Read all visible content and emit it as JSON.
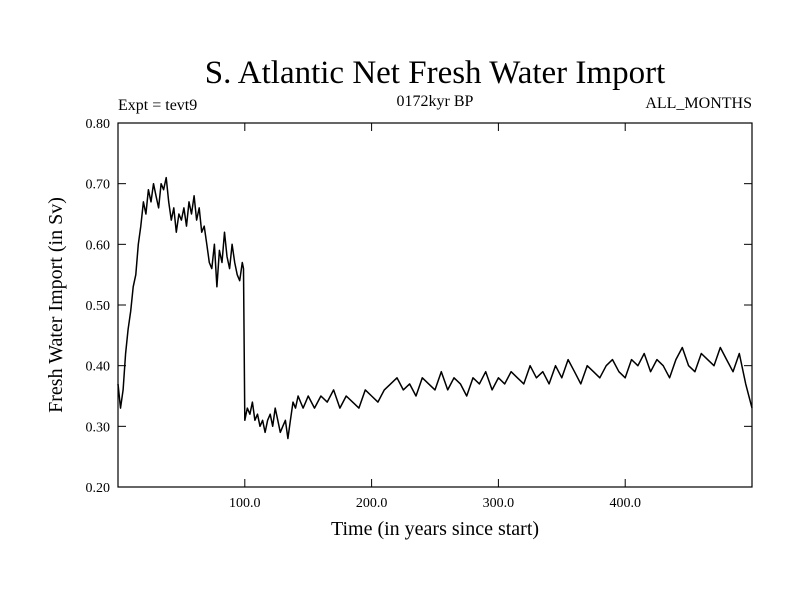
{
  "chart_data": {
    "type": "line",
    "title": "S. Atlantic Net Fresh Water Import",
    "subtitle_left": "Expt = tevt9",
    "subtitle_center": "0172kyr BP",
    "subtitle_right": "ALL_MONTHS",
    "xlabel": "Time (in years since start)",
    "ylabel": "Fresh Water Import (in Sv)",
    "xlim": [
      0,
      500
    ],
    "ylim": [
      0.2,
      0.8
    ],
    "x_ticks": [
      100,
      200,
      300,
      400
    ],
    "x_tick_labels": [
      "100.0",
      "200.0",
      "300.0",
      "400.0"
    ],
    "y_ticks": [
      0.2,
      0.3,
      0.4,
      0.5,
      0.6,
      0.7,
      0.8
    ],
    "y_tick_labels": [
      "0.20",
      "0.30",
      "0.40",
      "0.50",
      "0.60",
      "0.70",
      "0.80"
    ],
    "grid": false,
    "line_color": "#000000",
    "series": [
      {
        "x": [
          0,
          2,
          4,
          6,
          8,
          10,
          12,
          14,
          16,
          18,
          20,
          22,
          24,
          26,
          28,
          30,
          32,
          34,
          36,
          38,
          40,
          42,
          44,
          46,
          48,
          50,
          52,
          54,
          56,
          58,
          60,
          62,
          64,
          66,
          68,
          70,
          72,
          74,
          76,
          78,
          80,
          82,
          84,
          86,
          88,
          90,
          92,
          94,
          96,
          98,
          99,
          100,
          102,
          104,
          106,
          108,
          110,
          112,
          114,
          116,
          118,
          120,
          122,
          124,
          126,
          128,
          130,
          132,
          134,
          136,
          138,
          140,
          142,
          144,
          146,
          148,
          150,
          155,
          160,
          165,
          170,
          175,
          180,
          185,
          190,
          195,
          200,
          205,
          210,
          215,
          220,
          225,
          230,
          235,
          240,
          245,
          250,
          255,
          260,
          265,
          270,
          275,
          280,
          285,
          290,
          295,
          300,
          305,
          310,
          315,
          320,
          325,
          330,
          335,
          340,
          345,
          350,
          355,
          360,
          365,
          370,
          375,
          380,
          385,
          390,
          395,
          400,
          405,
          410,
          415,
          420,
          425,
          430,
          435,
          440,
          445,
          450,
          455,
          460,
          465,
          470,
          475,
          480,
          485,
          490,
          495,
          500
        ],
        "y": [
          0.37,
          0.33,
          0.36,
          0.42,
          0.46,
          0.49,
          0.53,
          0.55,
          0.6,
          0.63,
          0.67,
          0.65,
          0.69,
          0.67,
          0.7,
          0.68,
          0.66,
          0.7,
          0.69,
          0.71,
          0.67,
          0.64,
          0.66,
          0.62,
          0.65,
          0.64,
          0.66,
          0.63,
          0.67,
          0.65,
          0.68,
          0.64,
          0.66,
          0.62,
          0.63,
          0.6,
          0.57,
          0.56,
          0.6,
          0.53,
          0.59,
          0.57,
          0.62,
          0.58,
          0.56,
          0.6,
          0.57,
          0.55,
          0.54,
          0.57,
          0.56,
          0.31,
          0.33,
          0.32,
          0.34,
          0.31,
          0.32,
          0.3,
          0.31,
          0.29,
          0.31,
          0.32,
          0.3,
          0.33,
          0.31,
          0.29,
          0.3,
          0.31,
          0.28,
          0.31,
          0.34,
          0.33,
          0.35,
          0.34,
          0.33,
          0.34,
          0.35,
          0.33,
          0.35,
          0.34,
          0.36,
          0.33,
          0.35,
          0.34,
          0.33,
          0.36,
          0.35,
          0.34,
          0.36,
          0.37,
          0.38,
          0.36,
          0.37,
          0.35,
          0.38,
          0.37,
          0.36,
          0.39,
          0.36,
          0.38,
          0.37,
          0.35,
          0.38,
          0.37,
          0.39,
          0.36,
          0.38,
          0.37,
          0.39,
          0.38,
          0.37,
          0.4,
          0.38,
          0.39,
          0.37,
          0.4,
          0.38,
          0.41,
          0.39,
          0.37,
          0.4,
          0.39,
          0.38,
          0.4,
          0.41,
          0.39,
          0.38,
          0.41,
          0.4,
          0.42,
          0.39,
          0.41,
          0.4,
          0.38,
          0.41,
          0.43,
          0.4,
          0.39,
          0.42,
          0.41,
          0.4,
          0.43,
          0.41,
          0.39,
          0.42,
          0.37,
          0.33
        ]
      }
    ]
  }
}
